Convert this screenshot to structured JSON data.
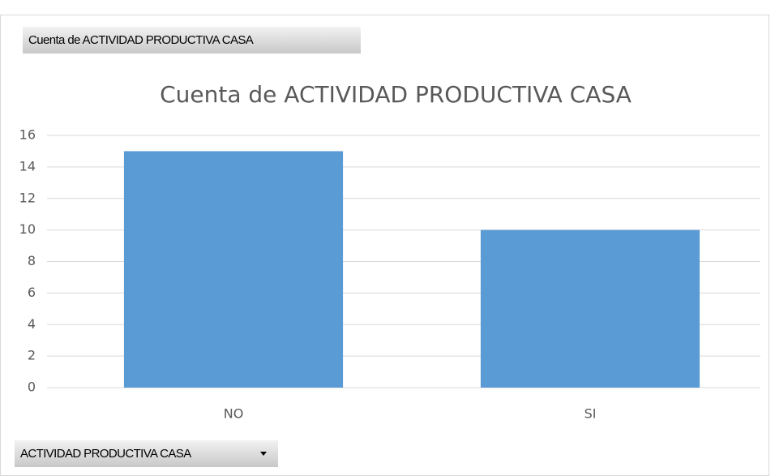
{
  "chart_data": {
    "type": "bar",
    "title": "Cuenta de ACTIVIDAD PRODUCTIVA CASA",
    "value_field_button": "Cuenta de ACTIVIDAD PRODUCTIVA CASA",
    "axis_field_button": "ACTIVIDAD PRODUCTIVA CASA",
    "categories": [
      "NO",
      "SI"
    ],
    "values": [
      15,
      10
    ],
    "color": "#5b9bd5",
    "ylim": [
      0,
      16
    ],
    "yticks": [
      0,
      2,
      4,
      6,
      8,
      10,
      12,
      14,
      16
    ],
    "grid": true
  }
}
